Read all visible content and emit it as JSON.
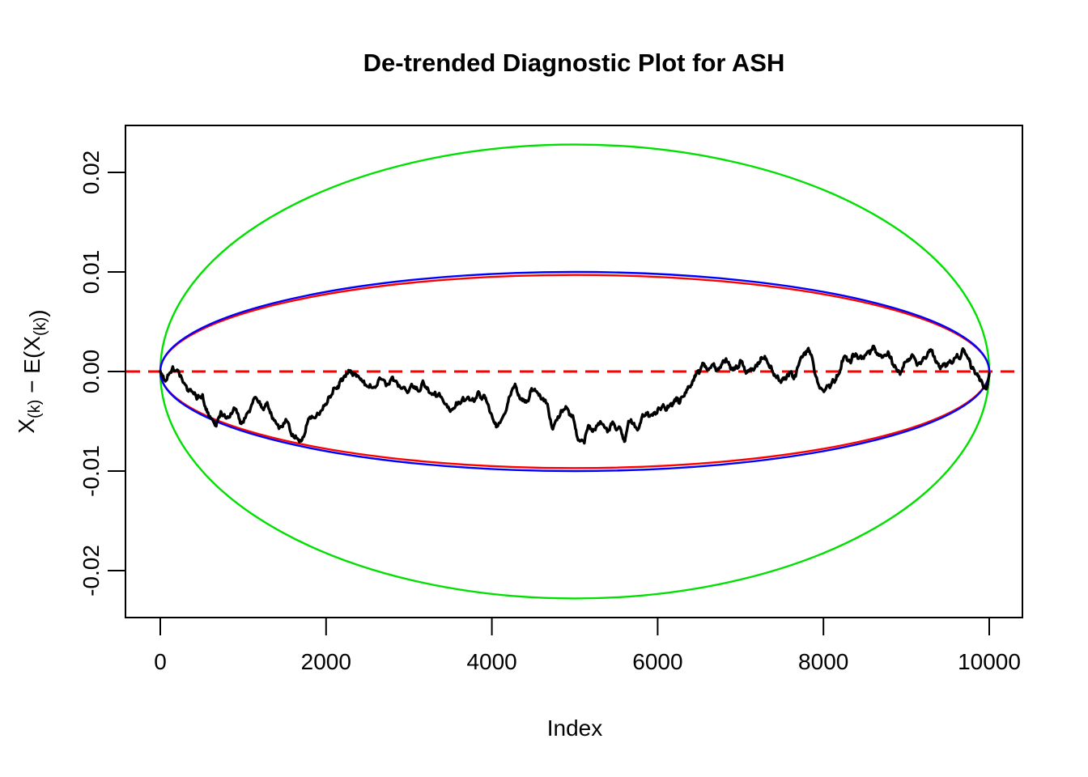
{
  "figure": {
    "background": "#FFFFFF",
    "text_color": "#000000"
  },
  "chart_data": {
    "type": "line",
    "title": "De-trended Diagnostic Plot for ASH",
    "xlabel": "Index",
    "ylabel": "X(k) − E(X(k))",
    "ylabel_parts": [
      {
        "t": "X"
      },
      {
        "t": "(k)",
        "sub": true
      },
      {
        "t": " − "
      },
      {
        "t": "E(X"
      },
      {
        "t": "(k)",
        "sub": true
      },
      {
        "t": ")"
      }
    ],
    "xlim": [
      0,
      10000
    ],
    "ylim": [
      -0.0247,
      0.0247
    ],
    "grid": false,
    "legend": "none",
    "x_ticks": [
      {
        "v": 0,
        "label": "0"
      },
      {
        "v": 2000,
        "label": "2000"
      },
      {
        "v": 4000,
        "label": "4000"
      },
      {
        "v": 6000,
        "label": "6000"
      },
      {
        "v": 8000,
        "label": "8000"
      },
      {
        "v": 10000,
        "label": "10000"
      }
    ],
    "y_ticks": [
      {
        "v": -0.02,
        "label": "-0.02"
      },
      {
        "v": -0.01,
        "label": "-0.01"
      },
      {
        "v": 0.0,
        "label": "0.00"
      },
      {
        "v": 0.01,
        "label": "0.01"
      },
      {
        "v": 0.02,
        "label": "0.02"
      }
    ],
    "zero_line": {
      "y": 0,
      "color": "#FF0000",
      "style": "dashed",
      "dash": [
        17,
        10
      ],
      "width": 3
    },
    "envelopes": [
      {
        "name": "green-envelope",
        "color": "#00E000",
        "center_x": 5000,
        "center_y": 0,
        "semi_axis_x": 5000,
        "semi_axis_y": 0.0228,
        "width": 2.4
      },
      {
        "name": "red-envelope",
        "color": "#FF0000",
        "center_x": 5000,
        "center_y": 0,
        "semi_axis_x": 5000,
        "semi_axis_y": 0.0097,
        "width": 2.4
      },
      {
        "name": "blue-envelope",
        "color": "#0000FF",
        "center_x": 5000,
        "center_y": 0,
        "semi_axis_x": 5000,
        "semi_axis_y": 0.01,
        "width": 2.4
      }
    ],
    "noise": {
      "seed": 11,
      "roughness": 0.005,
      "levels": 3
    },
    "series": [
      {
        "name": "detrended-sample-path",
        "color": "#000000",
        "width": 3.4,
        "points": [
          [
            0,
            0
          ],
          [
            70,
            -0.0009
          ],
          [
            150,
            0.0005
          ],
          [
            235,
            -0.0005
          ],
          [
            340,
            -0.002
          ],
          [
            440,
            -0.0028
          ],
          [
            510,
            -0.0023
          ],
          [
            575,
            -0.0041
          ],
          [
            675,
            -0.0055
          ],
          [
            730,
            -0.004
          ],
          [
            800,
            -0.0047
          ],
          [
            900,
            -0.0037
          ],
          [
            965,
            -0.0052
          ],
          [
            1065,
            -0.004
          ],
          [
            1160,
            -0.0027
          ],
          [
            1220,
            -0.0036
          ],
          [
            1290,
            -0.0031
          ],
          [
            1360,
            -0.0047
          ],
          [
            1455,
            -0.0055
          ],
          [
            1515,
            -0.0048
          ],
          [
            1610,
            -0.0066
          ],
          [
            1700,
            -0.007
          ],
          [
            1780,
            -0.005
          ],
          [
            1845,
            -0.0046
          ],
          [
            1945,
            -0.0039
          ],
          [
            2040,
            -0.0025
          ],
          [
            2140,
            -0.0015
          ],
          [
            2200,
            -0.0009
          ],
          [
            2295,
            0.0001
          ],
          [
            2365,
            -0.0005
          ],
          [
            2430,
            -0.0009
          ],
          [
            2530,
            -0.0013
          ],
          [
            2630,
            -0.0009
          ],
          [
            2755,
            -0.0013
          ],
          [
            2820,
            -0.0009
          ],
          [
            2920,
            -0.0017
          ],
          [
            3020,
            -0.0015
          ],
          [
            3115,
            -0.002
          ],
          [
            3175,
            -0.0011
          ],
          [
            3240,
            -0.0021
          ],
          [
            3340,
            -0.0025
          ],
          [
            3440,
            -0.0033
          ],
          [
            3535,
            -0.0037
          ],
          [
            3605,
            -0.0031
          ],
          [
            3700,
            -0.0027
          ],
          [
            3760,
            -0.0029
          ],
          [
            3830,
            -0.0021
          ],
          [
            3895,
            -0.0025
          ],
          [
            3955,
            -0.0033
          ],
          [
            4025,
            -0.0051
          ],
          [
            4070,
            -0.0055
          ],
          [
            4190,
            -0.0032
          ],
          [
            4250,
            -0.0017
          ],
          [
            4290,
            -0.0015
          ],
          [
            4345,
            -0.0027
          ],
          [
            4415,
            -0.0031
          ],
          [
            4480,
            -0.0017
          ],
          [
            4540,
            -0.002
          ],
          [
            4610,
            -0.0028
          ],
          [
            4680,
            -0.0037
          ],
          [
            4735,
            -0.0058
          ],
          [
            4835,
            -0.0039
          ],
          [
            4900,
            -0.0036
          ],
          [
            4970,
            -0.0044
          ],
          [
            5030,
            -0.0066
          ],
          [
            5115,
            -0.0072
          ],
          [
            5165,
            -0.0054
          ],
          [
            5225,
            -0.0058
          ],
          [
            5320,
            -0.0052
          ],
          [
            5420,
            -0.0059
          ],
          [
            5470,
            -0.0052
          ],
          [
            5555,
            -0.0058
          ],
          [
            5605,
            -0.007
          ],
          [
            5655,
            -0.005
          ],
          [
            5750,
            -0.0058
          ],
          [
            5810,
            -0.0046
          ],
          [
            5880,
            -0.0041
          ],
          [
            5975,
            -0.0043
          ],
          [
            6045,
            -0.0037
          ],
          [
            6105,
            -0.0039
          ],
          [
            6170,
            -0.0033
          ],
          [
            6200,
            -0.0029
          ],
          [
            6270,
            -0.0031
          ],
          [
            6340,
            -0.0021
          ],
          [
            6370,
            -0.0015
          ],
          [
            6435,
            -0.0009
          ],
          [
            6465,
            -0.0002
          ],
          [
            6535,
            0.0006
          ],
          [
            6590,
            0.0003
          ],
          [
            6660,
            0.0007
          ],
          [
            6730,
            0.0003
          ],
          [
            6790,
            0.0011
          ],
          [
            6825,
            0.0013
          ],
          [
            6885,
            0.0002
          ],
          [
            6955,
            0.0005
          ],
          [
            7020,
            0.001
          ],
          [
            7080,
            -0.0001
          ],
          [
            7150,
            0.0002
          ],
          [
            7215,
            0.0009
          ],
          [
            7275,
            0.0013
          ],
          [
            7345,
            0.0005
          ],
          [
            7410,
            -0.0003
          ],
          [
            7470,
            -0.0009
          ],
          [
            7540,
            -0.0007
          ],
          [
            7605,
            -0.0001
          ],
          [
            7665,
            -0.0005
          ],
          [
            7735,
            0.0015
          ],
          [
            7800,
            0.002
          ],
          [
            7830,
            0.0021
          ],
          [
            7930,
            -0.0011
          ],
          [
            8030,
            -0.0017
          ],
          [
            8125,
            -0.0009
          ],
          [
            8195,
            -0.0001
          ],
          [
            8250,
            0.0015
          ],
          [
            8320,
            0.001
          ],
          [
            8390,
            0.0018
          ],
          [
            8485,
            0.0013
          ],
          [
            8585,
            0.0022
          ],
          [
            8615,
            0.0024
          ],
          [
            8680,
            0.0017
          ],
          [
            8780,
            0.002
          ],
          [
            8840,
            0.0007
          ],
          [
            8925,
            -0.0003
          ],
          [
            9005,
            0.001
          ],
          [
            9070,
            0.0017
          ],
          [
            9130,
            0.0006
          ],
          [
            9200,
            0.0013
          ],
          [
            9270,
            0.002
          ],
          [
            9295,
            0.0022
          ],
          [
            9365,
            0.001
          ],
          [
            9425,
            0.0005
          ],
          [
            9490,
            0.0006
          ],
          [
            9560,
            0.0009
          ],
          [
            9620,
            0.0015
          ],
          [
            9690,
            0.0022
          ],
          [
            9755,
            0.0013
          ],
          [
            9785,
            0.0003
          ],
          [
            9855,
            -0.0002
          ],
          [
            9885,
            -0.0009
          ],
          [
            9950,
            -0.0017
          ],
          [
            9980,
            -0.0013
          ],
          [
            10000,
            -0.0002
          ]
        ]
      }
    ]
  }
}
